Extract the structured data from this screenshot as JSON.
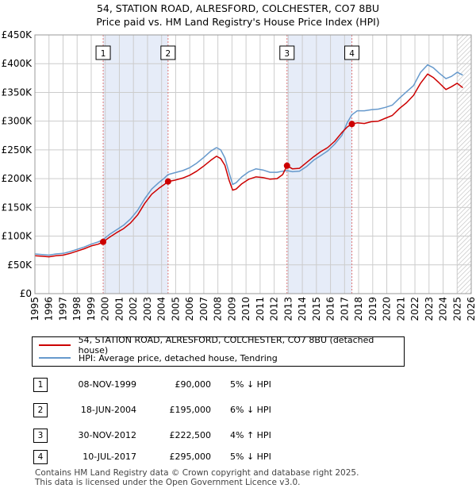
{
  "title_line1": "54, STATION ROAD, ALRESFORD, COLCHESTER, CO7 8BU",
  "title_line2": "Price paid vs. HM Land Registry's House Price Index (HPI)",
  "colors": {
    "property": "#cc0000",
    "hpi": "#6699cc",
    "shade": "#e6ecf8",
    "grid": "#cccccc",
    "marker_line": "#dd7777"
  },
  "chart_data": {
    "type": "line",
    "title": "Price paid vs. HM Land Registry's House Price Index (HPI)",
    "xlabel": "",
    "ylabel": "",
    "xlim": [
      1995,
      2026
    ],
    "ylim": [
      0,
      450000
    ],
    "y_ticks": [
      {
        "value": 0,
        "label": "£0"
      },
      {
        "value": 50000,
        "label": "£50K"
      },
      {
        "value": 100000,
        "label": "£100K"
      },
      {
        "value": 150000,
        "label": "£150K"
      },
      {
        "value": 200000,
        "label": "£200K"
      },
      {
        "value": 250000,
        "label": "£250K"
      },
      {
        "value": 300000,
        "label": "£300K"
      },
      {
        "value": 350000,
        "label": "£350K"
      },
      {
        "value": 400000,
        "label": "£400K"
      },
      {
        "value": 450000,
        "label": "£450K"
      }
    ],
    "x_ticks": [
      "1995",
      "1996",
      "1997",
      "1998",
      "1999",
      "2000",
      "2001",
      "2002",
      "2003",
      "2004",
      "2005",
      "2006",
      "2007",
      "2008",
      "2009",
      "2010",
      "2011",
      "2012",
      "2013",
      "2014",
      "2015",
      "2016",
      "2017",
      "2018",
      "2019",
      "2020",
      "2021",
      "2022",
      "2023",
      "2024",
      "2025",
      "2026"
    ],
    "shaded_ranges": [
      [
        1999.85,
        2004.46
      ],
      [
        2012.91,
        2017.52
      ]
    ],
    "forecast_from": 2025.0,
    "series": [
      {
        "name": "54, STATION ROAD, ALRESFORD, COLCHESTER, CO7 8BU (detached house)",
        "color": "#cc0000",
        "points": [
          [
            1995.0,
            66000
          ],
          [
            1995.5,
            65000
          ],
          [
            1996.0,
            64000
          ],
          [
            1996.5,
            66000
          ],
          [
            1997.0,
            67000
          ],
          [
            1997.5,
            70000
          ],
          [
            1998.0,
            74000
          ],
          [
            1998.5,
            78000
          ],
          [
            1999.0,
            83000
          ],
          [
            1999.5,
            86000
          ],
          [
            1999.85,
            90000
          ],
          [
            2000.3,
            98000
          ],
          [
            2000.8,
            106000
          ],
          [
            2001.3,
            113000
          ],
          [
            2001.8,
            123000
          ],
          [
            2002.3,
            137000
          ],
          [
            2002.8,
            157000
          ],
          [
            2003.3,
            173000
          ],
          [
            2003.8,
            183000
          ],
          [
            2004.2,
            190000
          ],
          [
            2004.46,
            195000
          ],
          [
            2004.9,
            197000
          ],
          [
            2005.5,
            201000
          ],
          [
            2006.0,
            206000
          ],
          [
            2006.5,
            213000
          ],
          [
            2007.0,
            222000
          ],
          [
            2007.5,
            232000
          ],
          [
            2007.9,
            239000
          ],
          [
            2008.2,
            235000
          ],
          [
            2008.5,
            223000
          ],
          [
            2008.8,
            197000
          ],
          [
            2009.05,
            180000
          ],
          [
            2009.3,
            182000
          ],
          [
            2009.7,
            191000
          ],
          [
            2010.2,
            199000
          ],
          [
            2010.7,
            203000
          ],
          [
            2011.2,
            202000
          ],
          [
            2011.7,
            199000
          ],
          [
            2012.2,
            200000
          ],
          [
            2012.6,
            207000
          ],
          [
            2012.91,
            222500
          ],
          [
            2013.3,
            217000
          ],
          [
            2013.8,
            218000
          ],
          [
            2014.3,
            228000
          ],
          [
            2014.8,
            238000
          ],
          [
            2015.3,
            247000
          ],
          [
            2015.8,
            254000
          ],
          [
            2016.3,
            265000
          ],
          [
            2016.8,
            280000
          ],
          [
            2017.2,
            290000
          ],
          [
            2017.52,
            295000
          ],
          [
            2017.9,
            297000
          ],
          [
            2018.4,
            296000
          ],
          [
            2018.9,
            299000
          ],
          [
            2019.4,
            300000
          ],
          [
            2019.9,
            305000
          ],
          [
            2020.4,
            310000
          ],
          [
            2020.9,
            322000
          ],
          [
            2021.4,
            332000
          ],
          [
            2021.9,
            345000
          ],
          [
            2022.4,
            366000
          ],
          [
            2022.9,
            382000
          ],
          [
            2023.3,
            376000
          ],
          [
            2023.7,
            367000
          ],
          [
            2024.2,
            355000
          ],
          [
            2024.6,
            360000
          ],
          [
            2025.0,
            366000
          ],
          [
            2025.4,
            358000
          ]
        ]
      },
      {
        "name": "HPI: Average price, detached house, Tendring",
        "color": "#6699cc",
        "points": [
          [
            1995.0,
            69000
          ],
          [
            1995.5,
            68000
          ],
          [
            1996.0,
            67000
          ],
          [
            1996.5,
            69000
          ],
          [
            1997.0,
            70000
          ],
          [
            1997.5,
            73000
          ],
          [
            1998.0,
            77000
          ],
          [
            1998.5,
            81000
          ],
          [
            1999.0,
            86000
          ],
          [
            1999.5,
            90000
          ],
          [
            1999.85,
            94000
          ],
          [
            2000.3,
            103000
          ],
          [
            2000.8,
            111000
          ],
          [
            2001.3,
            119000
          ],
          [
            2001.8,
            130000
          ],
          [
            2002.3,
            145000
          ],
          [
            2002.8,
            165000
          ],
          [
            2003.3,
            182000
          ],
          [
            2003.8,
            193000
          ],
          [
            2004.2,
            201000
          ],
          [
            2004.46,
            207000
          ],
          [
            2004.9,
            210000
          ],
          [
            2005.5,
            214000
          ],
          [
            2006.0,
            219000
          ],
          [
            2006.5,
            227000
          ],
          [
            2007.0,
            237000
          ],
          [
            2007.5,
            248000
          ],
          [
            2007.9,
            254000
          ],
          [
            2008.2,
            250000
          ],
          [
            2008.5,
            236000
          ],
          [
            2008.8,
            210000
          ],
          [
            2009.05,
            190000
          ],
          [
            2009.3,
            193000
          ],
          [
            2009.7,
            203000
          ],
          [
            2010.2,
            212000
          ],
          [
            2010.7,
            217000
          ],
          [
            2011.2,
            215000
          ],
          [
            2011.7,
            211000
          ],
          [
            2012.2,
            211000
          ],
          [
            2012.6,
            213000
          ],
          [
            2012.91,
            214000
          ],
          [
            2013.3,
            212000
          ],
          [
            2013.8,
            213000
          ],
          [
            2014.3,
            221000
          ],
          [
            2014.8,
            232000
          ],
          [
            2015.3,
            240000
          ],
          [
            2015.8,
            248000
          ],
          [
            2016.3,
            260000
          ],
          [
            2016.8,
            275000
          ],
          [
            2017.2,
            298000
          ],
          [
            2017.52,
            311000
          ],
          [
            2017.9,
            318000
          ],
          [
            2018.4,
            318000
          ],
          [
            2018.9,
            320000
          ],
          [
            2019.4,
            321000
          ],
          [
            2019.9,
            324000
          ],
          [
            2020.4,
            328000
          ],
          [
            2020.9,
            340000
          ],
          [
            2021.4,
            351000
          ],
          [
            2021.9,
            362000
          ],
          [
            2022.4,
            385000
          ],
          [
            2022.9,
            398000
          ],
          [
            2023.3,
            393000
          ],
          [
            2023.7,
            384000
          ],
          [
            2024.2,
            374000
          ],
          [
            2024.6,
            378000
          ],
          [
            2025.0,
            385000
          ],
          [
            2025.4,
            380000
          ]
        ]
      }
    ],
    "sales": [
      {
        "label": "1",
        "x": 1999.85,
        "y": 90000
      },
      {
        "label": "2",
        "x": 2004.46,
        "y": 195000
      },
      {
        "label": "3",
        "x": 2012.91,
        "y": 222500
      },
      {
        "label": "4",
        "x": 2017.52,
        "y": 295000
      }
    ]
  },
  "legend": {
    "property_label": "54, STATION ROAD, ALRESFORD, COLCHESTER, CO7 8BU (detached house)",
    "hpi_label": "HPI: Average price, detached house, Tendring"
  },
  "transactions": [
    {
      "num": "1",
      "date": "08-NOV-1999",
      "price": "£90,000",
      "delta": "5% ↓ HPI"
    },
    {
      "num": "2",
      "date": "18-JUN-2004",
      "price": "£195,000",
      "delta": "6% ↓ HPI"
    },
    {
      "num": "3",
      "date": "30-NOV-2012",
      "price": "£222,500",
      "delta": "4% ↑ HPI"
    },
    {
      "num": "4",
      "date": "10-JUL-2017",
      "price": "£295,000",
      "delta": "5% ↓ HPI"
    }
  ],
  "footer": {
    "line1": "Contains HM Land Registry data © Crown copyright and database right 2025.",
    "line2": "This data is licensed under the Open Government Licence v3.0."
  }
}
